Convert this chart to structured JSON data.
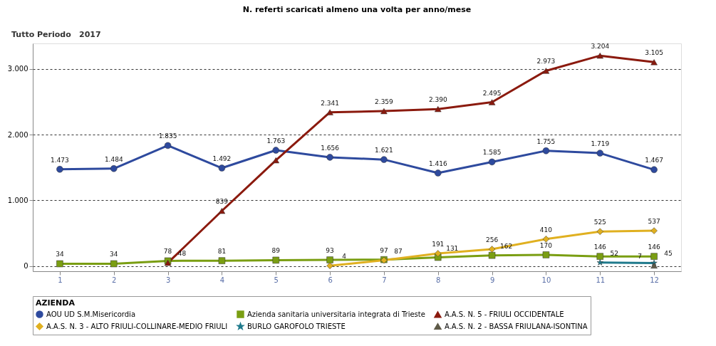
{
  "chart_data": {
    "type": "line",
    "title": "N. referti scaricati almeno una volta per anno/mese",
    "annotations": [
      "Tutto Periodo",
      "2017"
    ],
    "legend_title": "AZIENDA",
    "legend": "bottom",
    "grid": "y",
    "line_style": "solid",
    "categories": [
      "1",
      "2",
      "3",
      "4",
      "5",
      "6",
      "7",
      "8",
      "9",
      "10",
      "11",
      "12"
    ],
    "ylim": [
      -80,
      3390
    ],
    "yticks": [
      0,
      {
        "value": 1000,
        "label": "1.000"
      },
      {
        "value": 2000,
        "label": "2.000"
      },
      {
        "value": 3000,
        "label": "3.000"
      }
    ],
    "series": [
      {
        "name": "AOU UD S.M.Misericordia",
        "color": "#2e4a9e",
        "marker": "circle",
        "values": [
          1473,
          1484,
          1835,
          1492,
          1763,
          1656,
          1621,
          1416,
          1585,
          1755,
          1719,
          1467
        ],
        "value_labels": [
          "1.473",
          "1.484",
          "1.835",
          "1.492",
          "1.763",
          "1.656",
          "1.621",
          "1.416",
          "1.585",
          "1.755",
          "1.719",
          "1.467"
        ]
      },
      {
        "name": "Azienda sanitaria universitaria integrata di Trieste",
        "color": "#7a9e12",
        "marker": "square",
        "values": [
          34,
          34,
          78,
          81,
          89,
          93,
          97,
          131,
          162,
          170,
          146,
          146
        ],
        "value_labels": [
          "34",
          "34",
          "78",
          "81",
          "89",
          "93",
          "97",
          "131",
          "162",
          "170",
          "146",
          "146"
        ]
      },
      {
        "name": "A.A.S. N. 5 - FRIULI OCCIDENTALE",
        "color": "#8b1a0e",
        "marker": "triangle",
        "values": [
          null,
          null,
          48,
          839,
          1610,
          2341,
          2359,
          2390,
          2495,
          2973,
          3204,
          3105
        ],
        "value_labels": [
          null,
          null,
          "48",
          "839",
          null,
          "2.341",
          "2.359",
          "2.390",
          "2.495",
          "2.973",
          "3.204",
          "3.105"
        ]
      },
      {
        "name": "A.A.S. N. 3 - ALTO FRIULI-COLLINARE-MEDIO FRIULI",
        "color": "#e0b020",
        "marker": "diamond",
        "values": [
          null,
          null,
          null,
          null,
          null,
          4,
          87,
          191,
          256,
          410,
          525,
          537
        ],
        "value_labels": [
          null,
          null,
          null,
          null,
          null,
          "4",
          "87",
          "191",
          "256",
          "410",
          "525",
          "537"
        ]
      },
      {
        "name": "BURLO GAROFOLO TRIESTE",
        "color": "#1f7a8c",
        "marker": "star",
        "values": [
          null,
          null,
          null,
          null,
          null,
          null,
          null,
          null,
          null,
          null,
          52,
          45
        ],
        "value_labels": [
          null,
          null,
          null,
          null,
          null,
          null,
          null,
          null,
          null,
          null,
          "52",
          "45"
        ]
      },
      {
        "name": "A.A.S. N. 2 - BASSA FRIULANA-ISONTINA",
        "color": "#5e5a48",
        "marker": "triangle",
        "values": [
          null,
          null,
          null,
          null,
          null,
          null,
          null,
          null,
          null,
          null,
          null,
          7
        ],
        "value_labels": [
          null,
          null,
          null,
          null,
          null,
          null,
          null,
          null,
          null,
          null,
          null,
          "7"
        ]
      }
    ]
  }
}
